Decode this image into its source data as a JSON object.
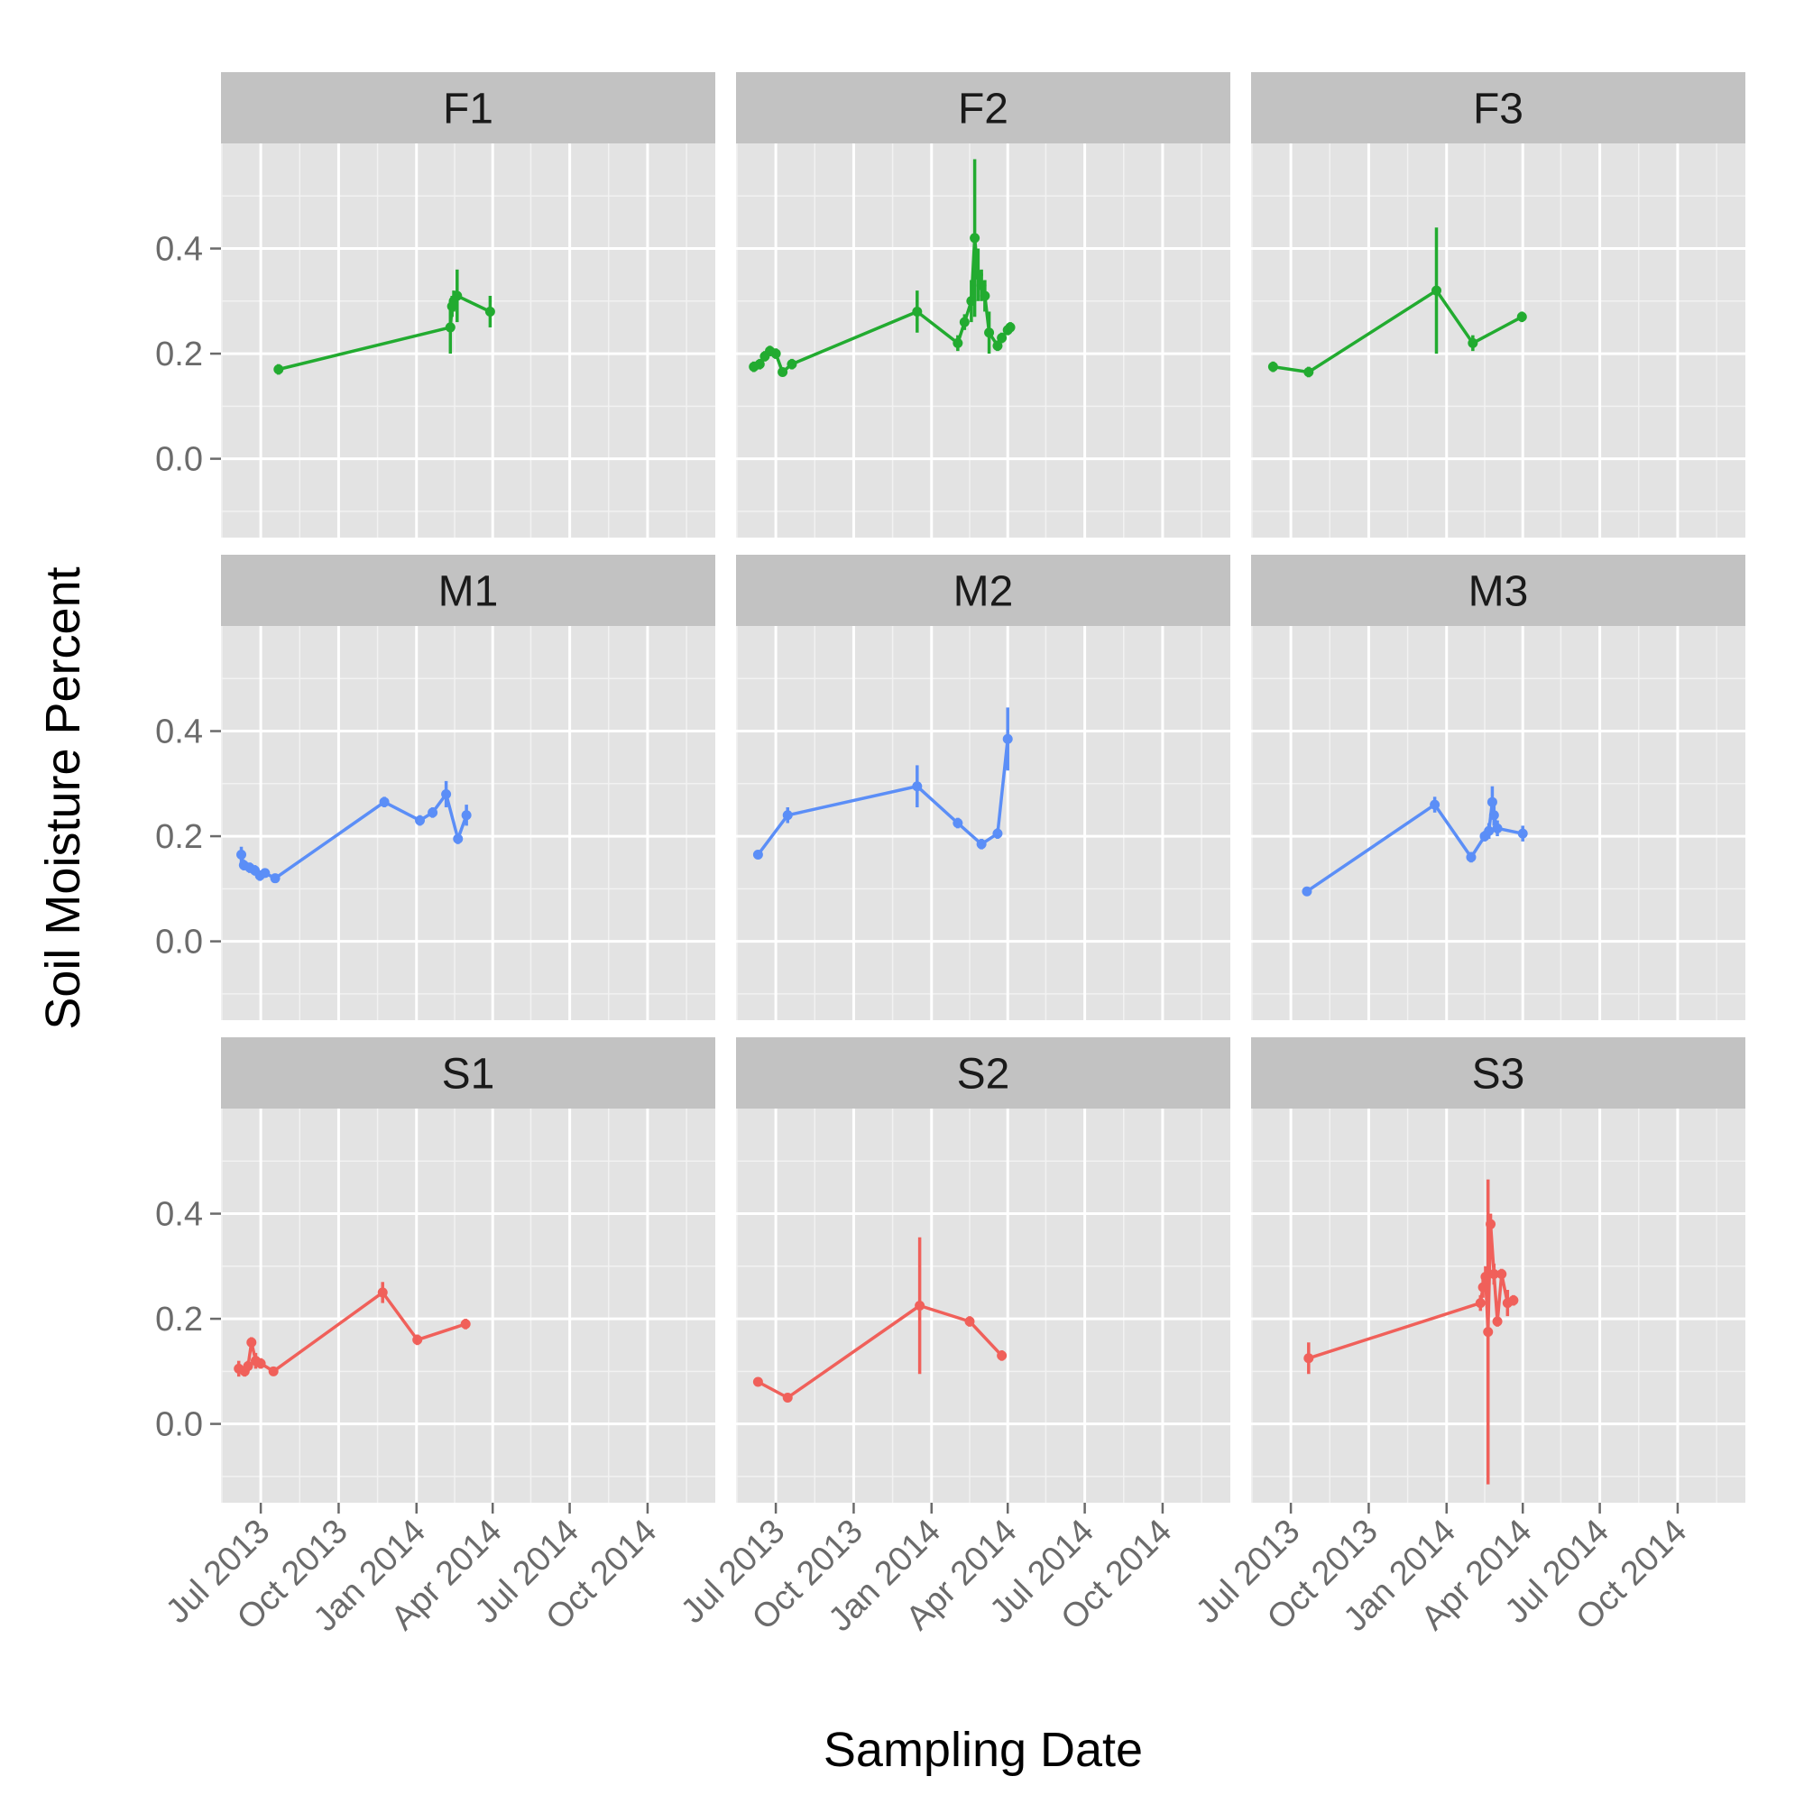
{
  "chart_data": {
    "type": "line",
    "facet_layout": "3x3 grid",
    "xlabel": "Sampling Date",
    "ylabel": "Soil Moisture Percent",
    "x_ticks": [
      "Jul 2013",
      "Oct 2013",
      "Jan 2014",
      "Apr 2014",
      "Jul 2014",
      "Oct 2014"
    ],
    "y_ticks": [
      "0.0",
      "0.2",
      "0.4"
    ],
    "xlim": [
      "2013-05-15",
      "2014-12-20"
    ],
    "ylim": [
      -0.15,
      0.6
    ],
    "grid": true,
    "legend": "none",
    "colors": {
      "F": "#22ab30",
      "M": "#5b8ef7",
      "S": "#f0605a"
    },
    "panels": [
      {
        "label": "F1",
        "group": "F",
        "points": [
          [
            "2013-07-22",
            0.17,
            0.01
          ],
          [
            "2014-02-10",
            0.25,
            0.05
          ],
          [
            "2014-02-12",
            0.29,
            0.02
          ],
          [
            "2014-02-14",
            0.3,
            0.02
          ],
          [
            "2014-02-18",
            0.31,
            0.05
          ],
          [
            "2014-03-29",
            0.28,
            0.03
          ]
        ]
      },
      {
        "label": "F2",
        "group": "F",
        "points": [
          [
            "2013-06-05",
            0.175,
            0.01
          ],
          [
            "2013-06-12",
            0.18,
            0.01
          ],
          [
            "2013-06-18",
            0.195,
            0.01
          ],
          [
            "2013-06-24",
            0.205,
            0.01
          ],
          [
            "2013-07-01",
            0.2,
            0.01
          ],
          [
            "2013-07-09",
            0.165,
            0.008
          ],
          [
            "2013-07-20",
            0.18,
            0.01
          ],
          [
            "2013-12-15",
            0.28,
            0.04
          ],
          [
            "2014-02-01",
            0.22,
            0.015
          ],
          [
            "2014-02-09",
            0.26,
            0.015
          ],
          [
            "2014-02-17",
            0.3,
            0.04
          ],
          [
            "2014-02-21",
            0.42,
            0.15
          ],
          [
            "2014-02-25",
            0.35,
            0.05
          ],
          [
            "2014-03-01",
            0.33,
            0.03
          ],
          [
            "2014-03-05",
            0.31,
            0.03
          ],
          [
            "2014-03-10",
            0.24,
            0.04
          ],
          [
            "2014-03-20",
            0.215,
            0.01
          ],
          [
            "2014-03-25",
            0.23,
            0.01
          ],
          [
            "2014-04-01",
            0.245,
            0.01
          ],
          [
            "2014-04-04",
            0.25,
            0.01
          ]
        ]
      },
      {
        "label": "F3",
        "group": "F",
        "points": [
          [
            "2013-06-10",
            0.175,
            0.01
          ],
          [
            "2013-07-22",
            0.165,
            0.01
          ],
          [
            "2013-12-20",
            0.32,
            0.12
          ],
          [
            "2014-02-01",
            0.22,
            0.015
          ],
          [
            "2014-03-31",
            0.27,
            0.01
          ]
        ]
      },
      {
        "label": "M1",
        "group": "M",
        "points": [
          [
            "2013-06-08",
            0.165,
            0.015
          ],
          [
            "2013-06-11",
            0.145,
            0.01
          ],
          [
            "2013-06-18",
            0.14,
            0.01
          ],
          [
            "2013-06-24",
            0.135,
            0.01
          ],
          [
            "2013-06-30",
            0.125,
            0.01
          ],
          [
            "2013-07-06",
            0.13,
            0.008
          ],
          [
            "2013-07-18",
            0.12,
            0.008
          ],
          [
            "2013-11-24",
            0.265,
            0.01
          ],
          [
            "2014-01-05",
            0.23,
            0.01
          ],
          [
            "2014-01-20",
            0.245,
            0.01
          ],
          [
            "2014-02-05",
            0.28,
            0.025
          ],
          [
            "2014-02-19",
            0.195,
            0.01
          ],
          [
            "2014-03-01",
            0.24,
            0.02
          ]
        ]
      },
      {
        "label": "M2",
        "group": "M",
        "points": [
          [
            "2013-06-10",
            0.165,
            0.008
          ],
          [
            "2013-07-15",
            0.24,
            0.015
          ],
          [
            "2013-12-15",
            0.295,
            0.04
          ],
          [
            "2014-02-01",
            0.225,
            0.01
          ],
          [
            "2014-03-01",
            0.185,
            0.01
          ],
          [
            "2014-03-20",
            0.205,
            0.01
          ],
          [
            "2014-04-01",
            0.385,
            0.06
          ]
        ]
      },
      {
        "label": "M3",
        "group": "M",
        "points": [
          [
            "2013-07-20",
            0.095,
            0.008
          ],
          [
            "2013-12-18",
            0.26,
            0.015
          ],
          [
            "2014-01-30",
            0.16,
            0.01
          ],
          [
            "2014-02-15",
            0.2,
            0.01
          ],
          [
            "2014-02-20",
            0.21,
            0.015
          ],
          [
            "2014-02-24",
            0.265,
            0.03
          ],
          [
            "2014-02-26",
            0.24,
            0.02
          ],
          [
            "2014-03-02",
            0.215,
            0.015
          ],
          [
            "2014-04-01",
            0.205,
            0.015
          ]
        ]
      },
      {
        "label": "S1",
        "group": "S",
        "points": [
          [
            "2013-06-05",
            0.105,
            0.015
          ],
          [
            "2013-06-12",
            0.1,
            0.01
          ],
          [
            "2013-06-16",
            0.11,
            0.01
          ],
          [
            "2013-06-20",
            0.155,
            0.01
          ],
          [
            "2013-06-25",
            0.12,
            0.015
          ],
          [
            "2013-07-01",
            0.115,
            0.01
          ],
          [
            "2013-07-16",
            0.1,
            0.008
          ],
          [
            "2013-11-22",
            0.25,
            0.02
          ],
          [
            "2014-01-02",
            0.16,
            0.01
          ],
          [
            "2014-02-28",
            0.19,
            0.01
          ]
        ]
      },
      {
        "label": "S2",
        "group": "S",
        "points": [
          [
            "2013-06-10",
            0.08,
            0.008
          ],
          [
            "2013-07-15",
            0.05,
            0.008
          ],
          [
            "2013-12-18",
            0.225,
            0.13
          ],
          [
            "2014-02-15",
            0.195,
            0.01
          ],
          [
            "2014-03-25",
            0.13,
            0.01
          ]
        ]
      },
      {
        "label": "S3",
        "group": "S",
        "points": [
          [
            "2013-07-22",
            0.125,
            0.03
          ],
          [
            "2014-02-10",
            0.23,
            0.015
          ],
          [
            "2014-02-13",
            0.26,
            0.02
          ],
          [
            "2014-02-16",
            0.28,
            0.02
          ],
          [
            "2014-02-19",
            0.175,
            0.29
          ],
          [
            "2014-02-22",
            0.38,
            0.02
          ],
          [
            "2014-02-26",
            0.285,
            0.02
          ],
          [
            "2014-03-02",
            0.195,
            0.01
          ],
          [
            "2014-03-07",
            0.285,
            0.01
          ],
          [
            "2014-03-14",
            0.23,
            0.025
          ],
          [
            "2014-03-21",
            0.235,
            0.01
          ]
        ]
      }
    ]
  }
}
